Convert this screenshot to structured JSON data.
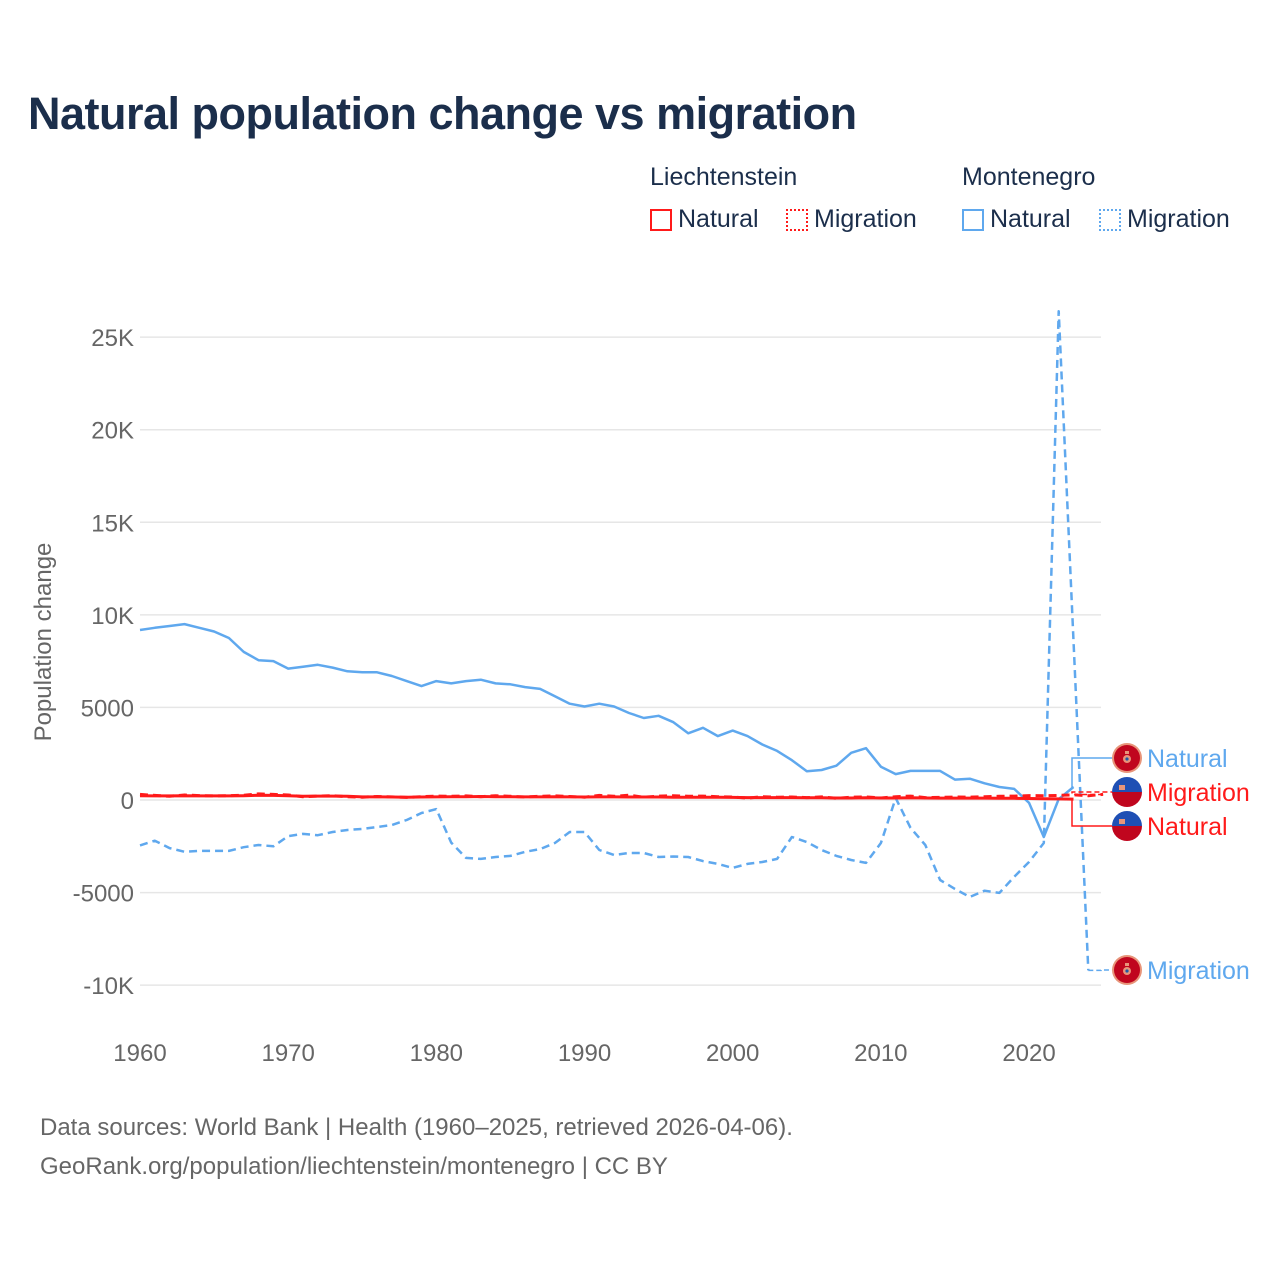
{
  "chart_data": {
    "type": "line",
    "title": "Natural population change vs migration",
    "ylabel": "Population change",
    "xlabel": "",
    "ylim": [
      -10000,
      25000
    ],
    "xlim": [
      1960,
      2025
    ],
    "y_ticks": [
      {
        "v": 25000,
        "label": "25K"
      },
      {
        "v": 20000,
        "label": "20K"
      },
      {
        "v": 15000,
        "label": "15K"
      },
      {
        "v": 10000,
        "label": "10K"
      },
      {
        "v": 5000,
        "label": "5000"
      },
      {
        "v": 0,
        "label": "0"
      },
      {
        "v": -5000,
        "label": "-5000"
      },
      {
        "v": -10000,
        "label": "-10K"
      }
    ],
    "x_ticks": [
      1960,
      1970,
      1980,
      1990,
      2000,
      2010,
      2020
    ],
    "grid": true,
    "legend_placement": "top-right",
    "legend_groups": [
      {
        "name": "Liechtenstein",
        "items": [
          "Natural",
          "Migration"
        ]
      },
      {
        "name": "Montenegro",
        "items": [
          "Natural",
          "Migration"
        ]
      }
    ],
    "series": [
      {
        "name": "Montenegro Natural",
        "label": "Natural",
        "color": "#5fa8ee",
        "dash": false,
        "start": 1960,
        "values": [
          9180,
          9300,
          9400,
          9500,
          9300,
          9100,
          8750,
          8000,
          7550,
          7500,
          7100,
          7200,
          7300,
          7150,
          6950,
          6900,
          6900,
          6700,
          6420,
          6150,
          6420,
          6300,
          6420,
          6500,
          6300,
          6250,
          6100,
          6000,
          5600,
          5200,
          5050,
          5200,
          5050,
          4700,
          4430,
          4550,
          4200,
          3600,
          3900,
          3450,
          3750,
          3450,
          3000,
          2650,
          2150,
          1550,
          1620,
          1850,
          2550,
          2800,
          1800,
          1400,
          1570,
          1570,
          1570,
          1100,
          1150,
          900,
          700,
          600,
          -150,
          -2000,
          50,
          700
        ]
      },
      {
        "name": "Montenegro Migration",
        "label": "Migration",
        "color": "#5fa8ee",
        "dash": true,
        "start": 1960,
        "values": [
          -2450,
          -2200,
          -2600,
          -2800,
          -2750,
          -2750,
          -2750,
          -2550,
          -2430,
          -2500,
          -1950,
          -1830,
          -1900,
          -1730,
          -1620,
          -1560,
          -1460,
          -1350,
          -1080,
          -700,
          -490,
          -2300,
          -3130,
          -3180,
          -3080,
          -3020,
          -2800,
          -2650,
          -2320,
          -1730,
          -1730,
          -2700,
          -2970,
          -2860,
          -2860,
          -3080,
          -3050,
          -3080,
          -3300,
          -3450,
          -3670,
          -3450,
          -3350,
          -3180,
          -2000,
          -2270,
          -2700,
          -3020,
          -3240,
          -3400,
          -2320,
          100,
          -1500,
          -2430,
          -4320,
          -4800,
          -5240,
          -4900,
          -5020,
          -4150,
          -3350,
          -2320,
          26400,
          8600,
          -9200
        ]
      },
      {
        "name": "Liechtenstein Natural",
        "label": "Natural",
        "color": "#ff1a1a",
        "dash": false,
        "start": 1960,
        "values": [
          230,
          220,
          220,
          230,
          220,
          220,
          220,
          230,
          260,
          250,
          230,
          200,
          210,
          210,
          200,
          170,
          170,
          160,
          150,
          160,
          170,
          180,
          180,
          190,
          180,
          180,
          170,
          170,
          180,
          170,
          160,
          170,
          170,
          160,
          160,
          160,
          150,
          150,
          150,
          150,
          140,
          130,
          130,
          130,
          130,
          120,
          120,
          110,
          110,
          120,
          110,
          110,
          120,
          110,
          100,
          100,
          100,
          100,
          90,
          90,
          80,
          70,
          60,
          50
        ]
      },
      {
        "name": "Liechtenstein Migration",
        "label": "Migration",
        "color": "#ff1a1a",
        "dash": true,
        "start": 1960,
        "values": [
          300,
          250,
          200,
          270,
          240,
          220,
          230,
          260,
          330,
          300,
          270,
          180,
          210,
          230,
          180,
          150,
          190,
          170,
          140,
          180,
          210,
          200,
          220,
          180,
          230,
          200,
          160,
          200,
          220,
          190,
          150,
          250,
          200,
          260,
          150,
          210,
          230,
          200,
          210,
          180,
          160,
          100,
          180,
          150,
          160,
          130,
          170,
          90,
          150,
          170,
          110,
          180,
          210,
          130,
          140,
          160,
          150,
          180,
          200,
          210,
          240,
          230,
          250,
          280,
          230,
          300
        ]
      }
    ],
    "end_labels": [
      {
        "text": "Natural",
        "color": "#5fa8ee",
        "flag": "montenegro"
      },
      {
        "text": "Migration",
        "color": "#ff1a1a",
        "flag": "liechtenstein"
      },
      {
        "text": "Natural",
        "color": "#ff1a1a",
        "flag": "liechtenstein"
      },
      {
        "text": "Migration",
        "color": "#5fa8ee",
        "flag": "montenegro"
      }
    ]
  },
  "legend": {
    "liechtenstein": "Liechtenstein",
    "montenegro": "Montenegro",
    "natural": "Natural",
    "migration": "Migration",
    "red": "#ff1a1a",
    "blue": "#5fa8ee"
  },
  "source": {
    "line1": "Data sources: World Bank | Health (1960–2025, retrieved 2026-04-06).",
    "line2": "GeoRank.org/population/liechtenstein/montenegro | CC BY"
  }
}
